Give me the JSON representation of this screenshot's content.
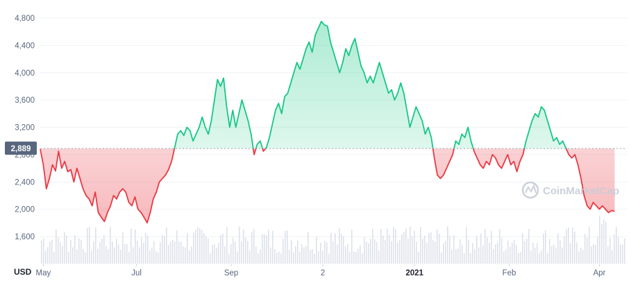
{
  "chart_data": {
    "type": "line",
    "currency_label": "USD",
    "reference_value": 2889,
    "reference_label": "2,889",
    "y_ticks": [
      1600,
      2000,
      2400,
      2800,
      3200,
      3600,
      4000,
      4400,
      4800
    ],
    "y_tick_labels": [
      "1,600",
      "2,000",
      "2,400",
      "2,800",
      "3,200",
      "3,600",
      "4,000",
      "4,400",
      "4,800"
    ],
    "ylim": [
      1500,
      4900
    ],
    "x_ticks": [
      {
        "label": "May",
        "day": 2,
        "bold": false
      },
      {
        "label": "Jul",
        "day": 63,
        "bold": false
      },
      {
        "label": "Sep",
        "day": 125,
        "bold": false
      },
      {
        "label": "2",
        "day": 185,
        "bold": false
      },
      {
        "label": "2021",
        "day": 245,
        "bold": true
      },
      {
        "label": "Feb",
        "day": 307,
        "bold": false
      },
      {
        "label": "Apr",
        "day": 366,
        "bold": false
      }
    ],
    "xlim": [
      0,
      384
    ],
    "series": [
      {
        "values": [
          [
            0,
            2880
          ],
          [
            2,
            2650
          ],
          [
            4,
            2300
          ],
          [
            6,
            2450
          ],
          [
            8,
            2650
          ],
          [
            10,
            2560
          ],
          [
            12,
            2850
          ],
          [
            14,
            2600
          ],
          [
            16,
            2700
          ],
          [
            18,
            2550
          ],
          [
            20,
            2580
          ],
          [
            22,
            2400
          ],
          [
            24,
            2600
          ],
          [
            26,
            2450
          ],
          [
            28,
            2300
          ],
          [
            30,
            2200
          ],
          [
            32,
            2150
          ],
          [
            34,
            2050
          ],
          [
            36,
            2250
          ],
          [
            38,
            1950
          ],
          [
            40,
            1880
          ],
          [
            42,
            1820
          ],
          [
            44,
            1950
          ],
          [
            46,
            2050
          ],
          [
            48,
            2200
          ],
          [
            50,
            2150
          ],
          [
            52,
            2250
          ],
          [
            54,
            2300
          ],
          [
            56,
            2250
          ],
          [
            58,
            2100
          ],
          [
            60,
            2050
          ],
          [
            62,
            2180
          ],
          [
            64,
            2000
          ],
          [
            66,
            1950
          ],
          [
            68,
            1880
          ],
          [
            70,
            1800
          ],
          [
            72,
            1950
          ],
          [
            74,
            2150
          ],
          [
            76,
            2250
          ],
          [
            78,
            2400
          ],
          [
            80,
            2450
          ],
          [
            82,
            2500
          ],
          [
            84,
            2580
          ],
          [
            86,
            2700
          ],
          [
            88,
            2900
          ],
          [
            90,
            3100
          ],
          [
            92,
            3150
          ],
          [
            94,
            3080
          ],
          [
            96,
            3200
          ],
          [
            98,
            3150
          ],
          [
            100,
            3000
          ],
          [
            102,
            3100
          ],
          [
            104,
            3200
          ],
          [
            106,
            3350
          ],
          [
            108,
            3200
          ],
          [
            110,
            3100
          ],
          [
            112,
            3300
          ],
          [
            114,
            3600
          ],
          [
            116,
            3900
          ],
          [
            118,
            3800
          ],
          [
            120,
            3920
          ],
          [
            122,
            3500
          ],
          [
            124,
            3200
          ],
          [
            126,
            3450
          ],
          [
            128,
            3200
          ],
          [
            130,
            3400
          ],
          [
            132,
            3600
          ],
          [
            134,
            3450
          ],
          [
            136,
            3300
          ],
          [
            138,
            3100
          ],
          [
            140,
            2800
          ],
          [
            142,
            2950
          ],
          [
            144,
            3000
          ],
          [
            146,
            2850
          ],
          [
            148,
            2900
          ],
          [
            150,
            3050
          ],
          [
            152,
            3250
          ],
          [
            154,
            3450
          ],
          [
            156,
            3550
          ],
          [
            158,
            3400
          ],
          [
            160,
            3650
          ],
          [
            162,
            3700
          ],
          [
            164,
            3850
          ],
          [
            166,
            4000
          ],
          [
            168,
            4150
          ],
          [
            170,
            4050
          ],
          [
            172,
            4200
          ],
          [
            174,
            4350
          ],
          [
            176,
            4450
          ],
          [
            178,
            4300
          ],
          [
            180,
            4550
          ],
          [
            182,
            4650
          ],
          [
            184,
            4750
          ],
          [
            186,
            4700
          ],
          [
            188,
            4680
          ],
          [
            190,
            4450
          ],
          [
            192,
            4300
          ],
          [
            194,
            4150
          ],
          [
            196,
            4000
          ],
          [
            198,
            4150
          ],
          [
            200,
            4350
          ],
          [
            202,
            4250
          ],
          [
            204,
            4400
          ],
          [
            206,
            4500
          ],
          [
            208,
            4300
          ],
          [
            210,
            4100
          ],
          [
            212,
            4000
          ],
          [
            214,
            3850
          ],
          [
            216,
            3950
          ],
          [
            218,
            3850
          ],
          [
            220,
            4000
          ],
          [
            222,
            4150
          ],
          [
            224,
            4000
          ],
          [
            226,
            3850
          ],
          [
            228,
            3700
          ],
          [
            230,
            3750
          ],
          [
            232,
            3600
          ],
          [
            234,
            3700
          ],
          [
            236,
            3850
          ],
          [
            238,
            3700
          ],
          [
            240,
            3450
          ],
          [
            242,
            3200
          ],
          [
            244,
            3350
          ],
          [
            246,
            3500
          ],
          [
            248,
            3400
          ],
          [
            250,
            3300
          ],
          [
            252,
            3100
          ],
          [
            254,
            3200
          ],
          [
            256,
            3050
          ],
          [
            258,
            2750
          ],
          [
            260,
            2500
          ],
          [
            262,
            2450
          ],
          [
            264,
            2500
          ],
          [
            266,
            2600
          ],
          [
            268,
            2700
          ],
          [
            270,
            2800
          ],
          [
            272,
            3000
          ],
          [
            274,
            2950
          ],
          [
            276,
            3100
          ],
          [
            278,
            3050
          ],
          [
            280,
            3200
          ],
          [
            282,
            3000
          ],
          [
            284,
            2850
          ],
          [
            286,
            2750
          ],
          [
            288,
            2650
          ],
          [
            290,
            2600
          ],
          [
            292,
            2700
          ],
          [
            294,
            2650
          ],
          [
            296,
            2800
          ],
          [
            298,
            2750
          ],
          [
            300,
            2650
          ],
          [
            302,
            2600
          ],
          [
            304,
            2700
          ],
          [
            306,
            2800
          ],
          [
            308,
            2650
          ],
          [
            310,
            2700
          ],
          [
            312,
            2550
          ],
          [
            314,
            2700
          ],
          [
            316,
            2800
          ],
          [
            318,
            3000
          ],
          [
            320,
            3150
          ],
          [
            322,
            3300
          ],
          [
            324,
            3400
          ],
          [
            326,
            3350
          ],
          [
            328,
            3500
          ],
          [
            330,
            3450
          ],
          [
            332,
            3300
          ],
          [
            334,
            3150
          ],
          [
            336,
            3000
          ],
          [
            338,
            3050
          ],
          [
            340,
            2950
          ],
          [
            342,
            3000
          ],
          [
            344,
            2900
          ],
          [
            346,
            2800
          ],
          [
            348,
            2750
          ],
          [
            350,
            2800
          ],
          [
            352,
            2650
          ],
          [
            354,
            2450
          ],
          [
            356,
            2200
          ],
          [
            358,
            2050
          ],
          [
            360,
            2000
          ],
          [
            362,
            2100
          ],
          [
            364,
            2050
          ],
          [
            366,
            2000
          ],
          [
            368,
            2050
          ],
          [
            370,
            2000
          ],
          [
            372,
            1950
          ],
          [
            374,
            1980
          ],
          [
            376,
            1970
          ]
        ]
      }
    ]
  }
}
